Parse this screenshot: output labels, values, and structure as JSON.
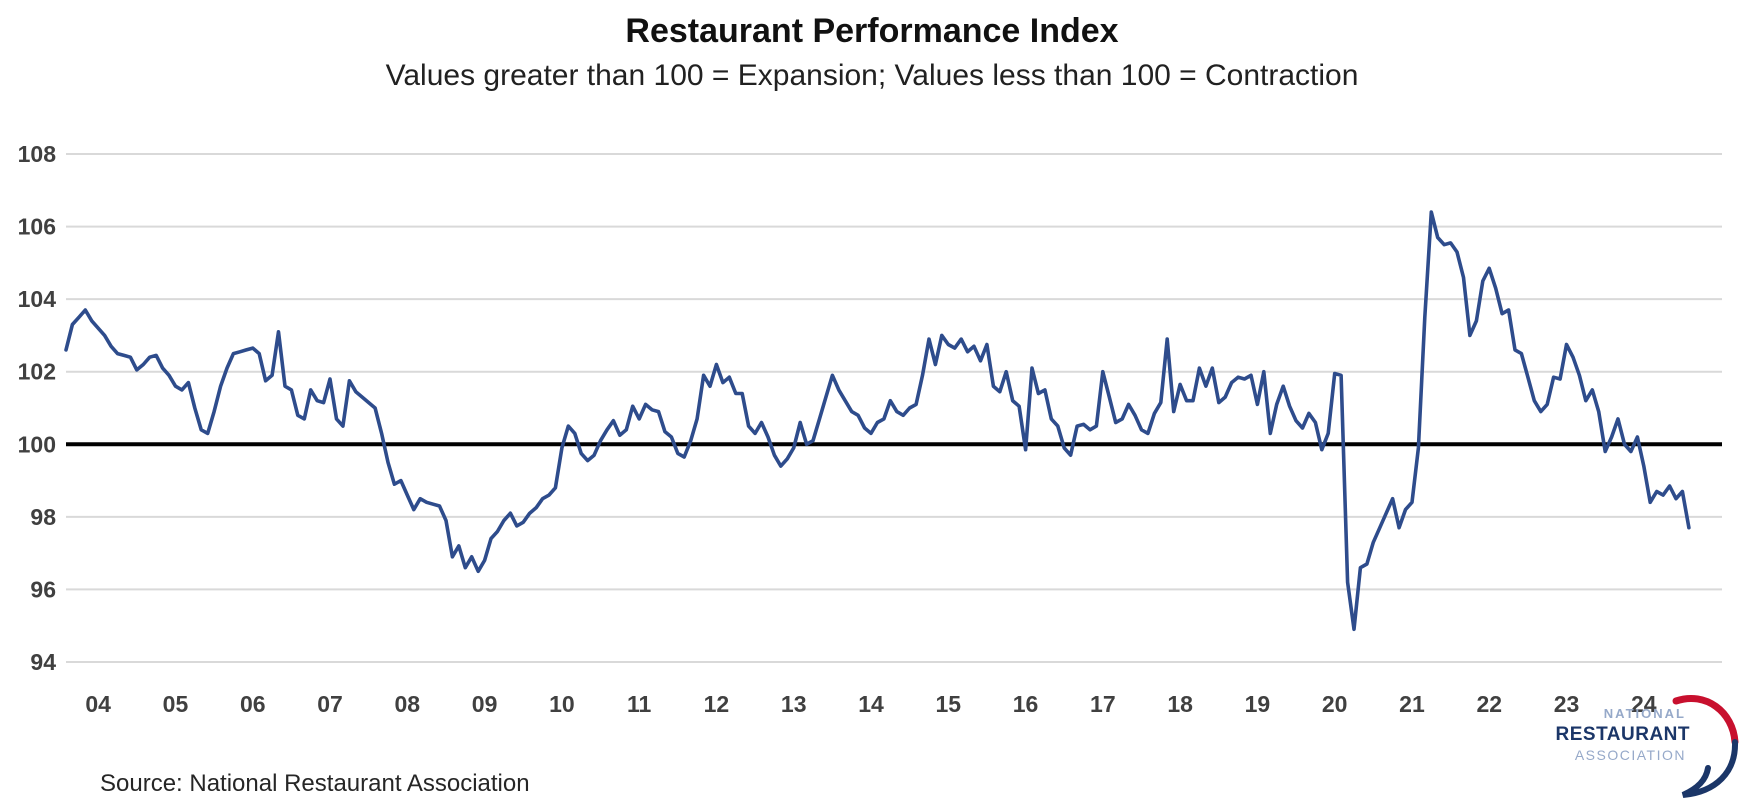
{
  "header": {
    "title": "Restaurant Performance Index",
    "subtitle": "Values greater than 100 = Expansion; Values less than 100 = Contraction"
  },
  "chart_data": {
    "type": "line",
    "title": "Restaurant Performance Index",
    "subtitle": "Values greater than 100 = Expansion; Values less than 100 = Contraction",
    "xlabel": "",
    "ylabel": "",
    "ylim": [
      94,
      108
    ],
    "y_ticks": [
      94,
      96,
      98,
      100,
      102,
      104,
      106,
      108
    ],
    "x_year_labels": [
      "04",
      "05",
      "06",
      "07",
      "08",
      "09",
      "10",
      "11",
      "12",
      "13",
      "14",
      "15",
      "16",
      "17",
      "18",
      "19",
      "20",
      "21",
      "22",
      "23",
      "24"
    ],
    "grid": "horizontal",
    "legend_position": "none",
    "baseline": 100,
    "line_color": "#2E4C8C",
    "baseline_color": "#000000",
    "gridline_color": "#D9D9D9",
    "tick_label_color": "#404040",
    "series": [
      {
        "name": "Restaurant Performance Index (monthly)",
        "start": "2003-08",
        "end": "2024-08",
        "frequency": "monthly",
        "values": [
          102.6,
          103.3,
          103.5,
          103.7,
          103.4,
          103.2,
          103.0,
          102.7,
          102.5,
          102.45,
          102.4,
          102.05,
          102.2,
          102.4,
          102.45,
          102.1,
          101.9,
          101.6,
          101.5,
          101.7,
          101.0,
          100.4,
          100.3,
          100.9,
          101.6,
          102.1,
          102.5,
          102.55,
          102.6,
          102.65,
          102.5,
          101.75,
          101.9,
          103.1,
          101.6,
          101.5,
          100.8,
          100.7,
          101.5,
          101.2,
          101.15,
          101.8,
          100.7,
          100.5,
          101.75,
          101.45,
          101.3,
          101.15,
          101.0,
          100.3,
          99.5,
          98.9,
          99.0,
          98.6,
          98.2,
          98.5,
          98.4,
          98.35,
          98.3,
          97.9,
          96.9,
          97.2,
          96.6,
          96.9,
          96.5,
          96.8,
          97.4,
          97.6,
          97.9,
          98.1,
          97.75,
          97.85,
          98.1,
          98.25,
          98.5,
          98.6,
          98.8,
          99.9,
          100.5,
          100.3,
          99.75,
          99.55,
          99.7,
          100.1,
          100.4,
          100.65,
          100.25,
          100.4,
          101.05,
          100.7,
          101.1,
          100.95,
          100.9,
          100.35,
          100.2,
          99.75,
          99.65,
          100.1,
          100.7,
          101.9,
          101.6,
          102.2,
          101.7,
          101.85,
          101.4,
          101.4,
          100.5,
          100.3,
          100.6,
          100.2,
          99.7,
          99.4,
          99.6,
          99.9,
          100.6,
          100.0,
          100.1,
          100.7,
          101.3,
          101.9,
          101.5,
          101.2,
          100.9,
          100.8,
          100.45,
          100.3,
          100.6,
          100.7,
          101.2,
          100.9,
          100.8,
          101.0,
          101.1,
          101.9,
          102.9,
          102.2,
          103.0,
          102.75,
          102.65,
          102.9,
          102.55,
          102.7,
          102.3,
          102.75,
          101.6,
          101.45,
          102.0,
          101.2,
          101.05,
          99.85,
          102.1,
          101.4,
          101.5,
          100.7,
          100.5,
          99.9,
          99.7,
          100.5,
          100.55,
          100.4,
          100.5,
          102.0,
          101.3,
          100.6,
          100.7,
          101.1,
          100.8,
          100.4,
          100.3,
          100.85,
          101.15,
          102.9,
          100.9,
          101.65,
          101.2,
          101.2,
          102.1,
          101.6,
          102.1,
          101.15,
          101.3,
          101.7,
          101.85,
          101.8,
          101.9,
          101.1,
          102.0,
          100.3,
          101.1,
          101.6,
          101.05,
          100.65,
          100.45,
          100.85,
          100.6,
          99.85,
          100.3,
          101.95,
          101.9,
          96.2,
          94.9,
          96.6,
          96.7,
          97.3,
          97.7,
          98.1,
          98.5,
          97.7,
          98.2,
          98.4,
          99.9,
          103.5,
          106.4,
          105.7,
          105.5,
          105.55,
          105.3,
          104.6,
          103.0,
          103.4,
          104.5,
          104.85,
          104.3,
          103.6,
          103.7,
          102.6,
          102.5,
          101.85,
          101.2,
          100.9,
          101.1,
          101.85,
          101.8,
          102.75,
          102.4,
          101.9,
          101.2,
          101.5,
          100.9,
          99.8,
          100.2,
          100.7,
          100.0,
          99.8,
          100.2,
          99.4,
          98.4,
          98.7,
          98.6,
          98.85,
          98.5,
          98.7,
          97.7
        ]
      }
    ]
  },
  "footer": {
    "source": "Source: National Restaurant Association"
  },
  "logo": {
    "line1": "NATIONAL",
    "line2": "RESTAURANT",
    "line3": "ASSOCIATION",
    "navy": "#1B3668",
    "muted": "#96A9C9",
    "red": "#C8102E"
  }
}
